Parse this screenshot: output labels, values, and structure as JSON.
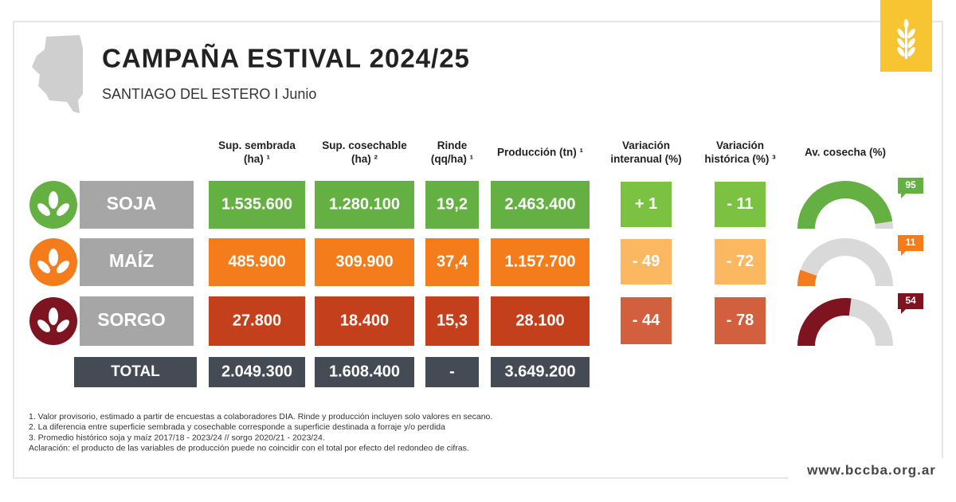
{
  "header": {
    "title": "CAMPAÑA ESTIVAL 2024/25",
    "subtitle": "SANTIAGO DEL ESTERO I Junio"
  },
  "table": {
    "columns": [
      [
        "Sup. sembrada",
        "(ha) ¹"
      ],
      [
        "Sup. cosechable",
        "(ha) ²"
      ],
      [
        "Rinde",
        "(qq/ha) ¹"
      ],
      [
        "Producción (tn) ¹"
      ],
      [
        "Variación",
        "interanual (%)"
      ],
      [
        "Variación",
        "histórica (%) ³"
      ],
      [
        "Av. cosecha (%)"
      ]
    ],
    "gauge_lim": [
      0,
      100
    ],
    "rows": [
      {
        "crop": "SOJA",
        "cells": [
          "1.535.600",
          "1.280.100",
          "19,2",
          "2.463.400",
          "+ 1",
          "- 11"
        ],
        "harvest": 95,
        "color": "#64b043",
        "light_color": "#7cc242",
        "gauge_color": "#64b043"
      },
      {
        "crop": "MAÍZ",
        "cells": [
          "485.900",
          "309.900",
          "37,4",
          "1.157.700",
          "- 49",
          "- 72"
        ],
        "harvest": 11,
        "color": "#f47c1b",
        "light_color": "#fbb860",
        "gauge_color": "#f47c1b"
      },
      {
        "crop": "SORGO",
        "cells": [
          "27.800",
          "18.400",
          "15,3",
          "28.100",
          "- 44",
          "- 78"
        ],
        "harvest": 54,
        "color": "#c4401d",
        "light_color": "#d2603f",
        "gauge_color": "#7d1420"
      }
    ],
    "total": {
      "label": "TOTAL",
      "cells": [
        "2.049.300",
        "1.608.400",
        "-",
        "3.649.200"
      ],
      "color": "#454b54"
    }
  },
  "footnotes": [
    "1. Valor provisorio, estimado a partir de encuestas a colaboradores DIA. Rinde y producción incluyen solo valores en secano.",
    "2. La diferencia entre superficie sembrada y cosechable corresponde a superficie destinada a forraje y/o perdida",
    "3. Promedio histórico soja y maíz 2017/18 - 2023/24 // sorgo 2020/21 - 2023/24.",
    "Aclaración: el producto de las variables de producción puede no coincidir con el total por efecto del redondeo de cifras."
  ],
  "url": "www.bccba.org.ar"
}
